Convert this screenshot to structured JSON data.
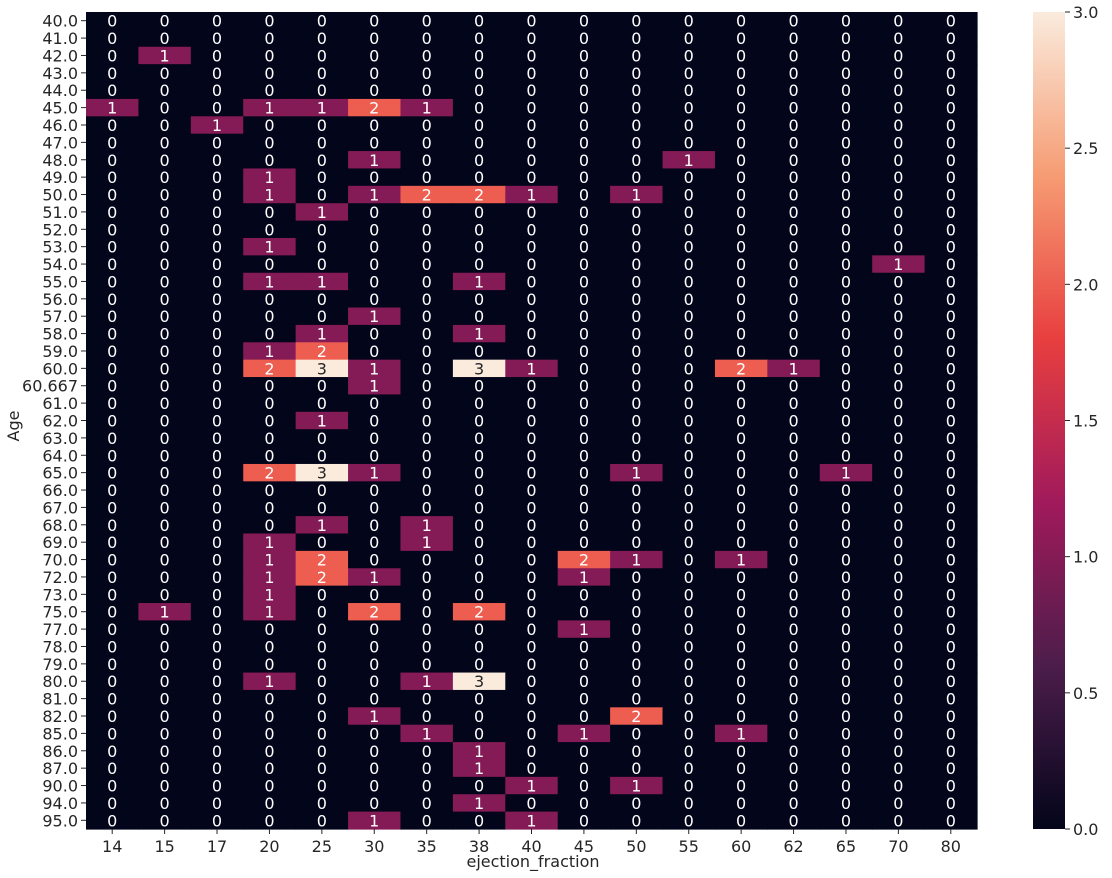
{
  "chart_data": {
    "type": "heatmap",
    "xlabel": "ejection_fraction",
    "ylabel": "Age",
    "x_categories": [
      "14",
      "15",
      "17",
      "20",
      "25",
      "30",
      "35",
      "38",
      "40",
      "45",
      "50",
      "55",
      "60",
      "62",
      "65",
      "70",
      "80"
    ],
    "y_categories": [
      "40.0",
      "41.0",
      "42.0",
      "43.0",
      "44.0",
      "45.0",
      "46.0",
      "47.0",
      "48.0",
      "49.0",
      "50.0",
      "51.0",
      "52.0",
      "53.0",
      "54.0",
      "55.0",
      "56.0",
      "57.0",
      "58.0",
      "59.0",
      "60.0",
      "60.667",
      "61.0",
      "62.0",
      "63.0",
      "64.0",
      "65.0",
      "66.0",
      "67.0",
      "68.0",
      "69.0",
      "70.0",
      "72.0",
      "73.0",
      "75.0",
      "77.0",
      "78.0",
      "79.0",
      "80.0",
      "81.0",
      "82.0",
      "85.0",
      "86.0",
      "87.0",
      "90.0",
      "94.0",
      "95.0"
    ],
    "values": [
      [
        0,
        0,
        0,
        0,
        0,
        0,
        0,
        0,
        0,
        0,
        0,
        0,
        0,
        0,
        0,
        0,
        0
      ],
      [
        0,
        0,
        0,
        0,
        0,
        0,
        0,
        0,
        0,
        0,
        0,
        0,
        0,
        0,
        0,
        0,
        0
      ],
      [
        0,
        1,
        0,
        0,
        0,
        0,
        0,
        0,
        0,
        0,
        0,
        0,
        0,
        0,
        0,
        0,
        0
      ],
      [
        0,
        0,
        0,
        0,
        0,
        0,
        0,
        0,
        0,
        0,
        0,
        0,
        0,
        0,
        0,
        0,
        0
      ],
      [
        0,
        0,
        0,
        0,
        0,
        0,
        0,
        0,
        0,
        0,
        0,
        0,
        0,
        0,
        0,
        0,
        0
      ],
      [
        1,
        0,
        0,
        1,
        1,
        2,
        1,
        0,
        0,
        0,
        0,
        0,
        0,
        0,
        0,
        0,
        0
      ],
      [
        0,
        0,
        1,
        0,
        0,
        0,
        0,
        0,
        0,
        0,
        0,
        0,
        0,
        0,
        0,
        0,
        0
      ],
      [
        0,
        0,
        0,
        0,
        0,
        0,
        0,
        0,
        0,
        0,
        0,
        0,
        0,
        0,
        0,
        0,
        0
      ],
      [
        0,
        0,
        0,
        0,
        0,
        1,
        0,
        0,
        0,
        0,
        0,
        1,
        0,
        0,
        0,
        0,
        0
      ],
      [
        0,
        0,
        0,
        1,
        0,
        0,
        0,
        0,
        0,
        0,
        0,
        0,
        0,
        0,
        0,
        0,
        0
      ],
      [
        0,
        0,
        0,
        1,
        0,
        1,
        2,
        2,
        1,
        0,
        1,
        0,
        0,
        0,
        0,
        0,
        0
      ],
      [
        0,
        0,
        0,
        0,
        1,
        0,
        0,
        0,
        0,
        0,
        0,
        0,
        0,
        0,
        0,
        0,
        0
      ],
      [
        0,
        0,
        0,
        0,
        0,
        0,
        0,
        0,
        0,
        0,
        0,
        0,
        0,
        0,
        0,
        0,
        0
      ],
      [
        0,
        0,
        0,
        1,
        0,
        0,
        0,
        0,
        0,
        0,
        0,
        0,
        0,
        0,
        0,
        0,
        0
      ],
      [
        0,
        0,
        0,
        0,
        0,
        0,
        0,
        0,
        0,
        0,
        0,
        0,
        0,
        0,
        0,
        1,
        0
      ],
      [
        0,
        0,
        0,
        1,
        1,
        0,
        0,
        1,
        0,
        0,
        0,
        0,
        0,
        0,
        0,
        0,
        0
      ],
      [
        0,
        0,
        0,
        0,
        0,
        0,
        0,
        0,
        0,
        0,
        0,
        0,
        0,
        0,
        0,
        0,
        0
      ],
      [
        0,
        0,
        0,
        0,
        0,
        1,
        0,
        0,
        0,
        0,
        0,
        0,
        0,
        0,
        0,
        0,
        0
      ],
      [
        0,
        0,
        0,
        0,
        1,
        0,
        0,
        1,
        0,
        0,
        0,
        0,
        0,
        0,
        0,
        0,
        0
      ],
      [
        0,
        0,
        0,
        1,
        2,
        0,
        0,
        0,
        0,
        0,
        0,
        0,
        0,
        0,
        0,
        0,
        0
      ],
      [
        0,
        0,
        0,
        2,
        3,
        1,
        0,
        3,
        1,
        0,
        0,
        0,
        2,
        1,
        0,
        0,
        0
      ],
      [
        0,
        0,
        0,
        0,
        0,
        1,
        0,
        0,
        0,
        0,
        0,
        0,
        0,
        0,
        0,
        0,
        0
      ],
      [
        0,
        0,
        0,
        0,
        0,
        0,
        0,
        0,
        0,
        0,
        0,
        0,
        0,
        0,
        0,
        0,
        0
      ],
      [
        0,
        0,
        0,
        0,
        1,
        0,
        0,
        0,
        0,
        0,
        0,
        0,
        0,
        0,
        0,
        0,
        0
      ],
      [
        0,
        0,
        0,
        0,
        0,
        0,
        0,
        0,
        0,
        0,
        0,
        0,
        0,
        0,
        0,
        0,
        0
      ],
      [
        0,
        0,
        0,
        0,
        0,
        0,
        0,
        0,
        0,
        0,
        0,
        0,
        0,
        0,
        0,
        0,
        0
      ],
      [
        0,
        0,
        0,
        2,
        3,
        1,
        0,
        0,
        0,
        0,
        1,
        0,
        0,
        0,
        1,
        0,
        0
      ],
      [
        0,
        0,
        0,
        0,
        0,
        0,
        0,
        0,
        0,
        0,
        0,
        0,
        0,
        0,
        0,
        0,
        0
      ],
      [
        0,
        0,
        0,
        0,
        0,
        0,
        0,
        0,
        0,
        0,
        0,
        0,
        0,
        0,
        0,
        0,
        0
      ],
      [
        0,
        0,
        0,
        0,
        1,
        0,
        1,
        0,
        0,
        0,
        0,
        0,
        0,
        0,
        0,
        0,
        0
      ],
      [
        0,
        0,
        0,
        1,
        0,
        0,
        1,
        0,
        0,
        0,
        0,
        0,
        0,
        0,
        0,
        0,
        0
      ],
      [
        0,
        0,
        0,
        1,
        2,
        0,
        0,
        0,
        0,
        2,
        1,
        0,
        1,
        0,
        0,
        0,
        0
      ],
      [
        0,
        0,
        0,
        1,
        2,
        1,
        0,
        0,
        0,
        1,
        0,
        0,
        0,
        0,
        0,
        0,
        0
      ],
      [
        0,
        0,
        0,
        1,
        0,
        0,
        0,
        0,
        0,
        0,
        0,
        0,
        0,
        0,
        0,
        0,
        0
      ],
      [
        0,
        1,
        0,
        1,
        0,
        2,
        0,
        2,
        0,
        0,
        0,
        0,
        0,
        0,
        0,
        0,
        0
      ],
      [
        0,
        0,
        0,
        0,
        0,
        0,
        0,
        0,
        0,
        1,
        0,
        0,
        0,
        0,
        0,
        0,
        0
      ],
      [
        0,
        0,
        0,
        0,
        0,
        0,
        0,
        0,
        0,
        0,
        0,
        0,
        0,
        0,
        0,
        0,
        0
      ],
      [
        0,
        0,
        0,
        0,
        0,
        0,
        0,
        0,
        0,
        0,
        0,
        0,
        0,
        0,
        0,
        0,
        0
      ],
      [
        0,
        0,
        0,
        1,
        0,
        0,
        1,
        3,
        0,
        0,
        0,
        0,
        0,
        0,
        0,
        0,
        0
      ],
      [
        0,
        0,
        0,
        0,
        0,
        0,
        0,
        0,
        0,
        0,
        0,
        0,
        0,
        0,
        0,
        0,
        0
      ],
      [
        0,
        0,
        0,
        0,
        0,
        1,
        0,
        0,
        0,
        0,
        2,
        0,
        0,
        0,
        0,
        0,
        0
      ],
      [
        0,
        0,
        0,
        0,
        0,
        0,
        1,
        0,
        0,
        1,
        0,
        0,
        1,
        0,
        0,
        0,
        0
      ],
      [
        0,
        0,
        0,
        0,
        0,
        0,
        0,
        1,
        0,
        0,
        0,
        0,
        0,
        0,
        0,
        0,
        0
      ],
      [
        0,
        0,
        0,
        0,
        0,
        0,
        0,
        1,
        0,
        0,
        0,
        0,
        0,
        0,
        0,
        0,
        0
      ],
      [
        0,
        0,
        0,
        0,
        0,
        0,
        0,
        0,
        1,
        0,
        1,
        0,
        0,
        0,
        0,
        0,
        0
      ],
      [
        0,
        0,
        0,
        0,
        0,
        0,
        0,
        1,
        0,
        0,
        0,
        0,
        0,
        0,
        0,
        0,
        0
      ],
      [
        0,
        0,
        0,
        0,
        0,
        1,
        0,
        0,
        1,
        0,
        0,
        0,
        0,
        0,
        0,
        0,
        0
      ]
    ],
    "colorbar": {
      "range": [
        0.0,
        3.0
      ],
      "ticks": [
        "0.0",
        "0.5",
        "1.0",
        "1.5",
        "2.0",
        "2.5",
        "3.0"
      ],
      "colors": [
        "#03051a",
        "#4c1d4b",
        "#a11a5b",
        "#e83f3f",
        "#f69c73",
        "#faebdd"
      ]
    },
    "annot_color_dark": "#ffffff",
    "annot_color_light": "#262626"
  }
}
